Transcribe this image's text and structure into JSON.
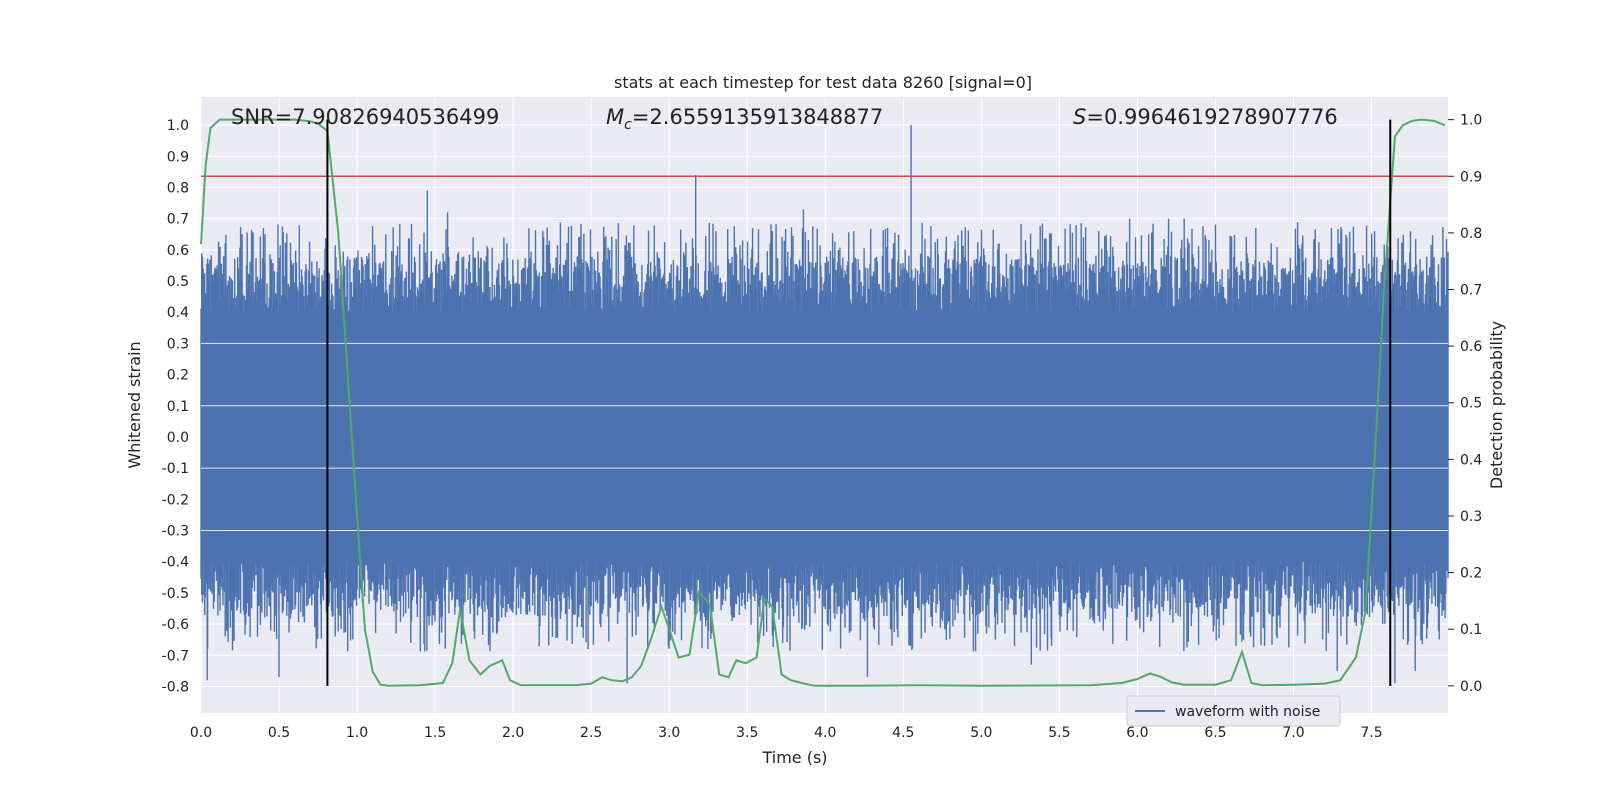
{
  "chart_data": {
    "type": "line",
    "title": "stats at each timestep for test data 8260 [signal=0]",
    "xlabel": "Time (s)",
    "ylabel": "Whitened strain",
    "y2label": "Detection probability",
    "xlim": [
      0.0,
      7.99
    ],
    "ylim": [
      -0.885,
      1.09
    ],
    "y2lim": [
      -0.048,
      1.04
    ],
    "x_ticks": [
      "0.0",
      "0.5",
      "1.0",
      "1.5",
      "2.0",
      "2.5",
      "3.0",
      "3.5",
      "4.0",
      "4.5",
      "5.0",
      "5.5",
      "6.0",
      "6.5",
      "7.0",
      "7.5"
    ],
    "y_ticks": [
      "-0.8",
      "-0.7",
      "-0.6",
      "-0.5",
      "-0.4",
      "-0.3",
      "-0.2",
      "-0.1",
      "0.0",
      "0.1",
      "0.2",
      "0.3",
      "0.4",
      "0.5",
      "0.6",
      "0.7",
      "0.8",
      "0.9",
      "1.0"
    ],
    "y2_ticks": [
      "0.0",
      "0.1",
      "0.2",
      "0.3",
      "0.4",
      "0.5",
      "0.6",
      "0.7",
      "0.8",
      "0.9",
      "1.0"
    ],
    "grid": true,
    "legend": {
      "position": "lower-right",
      "entries": [
        "waveform with noise"
      ]
    },
    "annotations": {
      "snr": "SNR=7.90826940536499",
      "mc_symbol": "M",
      "mc_sub": "c",
      "mc_value": "=2.6559135913848877",
      "s_symbol": "S",
      "s_value": "=0.9964619278907776"
    },
    "threshold_y2": 0.9,
    "vlines_x": [
      0.81,
      7.62
    ],
    "vlines_y2_range": [
      0.0,
      1.0
    ],
    "waveform": {
      "name": "waveform with noise",
      "color": "#4c72b0",
      "typical_band": [
        -0.35,
        0.35
      ],
      "peaks_positive": [
        {
          "x": 0.41,
          "y": 0.65
        },
        {
          "x": 1.45,
          "y": 0.79
        },
        {
          "x": 1.58,
          "y": 0.72
        },
        {
          "x": 3.17,
          "y": 0.84
        },
        {
          "x": 3.3,
          "y": 0.66
        },
        {
          "x": 3.47,
          "y": 0.63
        },
        {
          "x": 3.86,
          "y": 0.73
        },
        {
          "x": 4.55,
          "y": 1.0
        },
        {
          "x": 5.95,
          "y": 0.7
        },
        {
          "x": 6.1,
          "y": 0.66
        },
        {
          "x": 6.2,
          "y": 0.7
        },
        {
          "x": 6.3,
          "y": 0.7
        },
        {
          "x": 7.52,
          "y": 0.66
        },
        {
          "x": 7.75,
          "y": 0.66
        }
      ],
      "peaks_negative": [
        {
          "x": 0.04,
          "y": -0.78
        },
        {
          "x": 0.5,
          "y": -0.77
        },
        {
          "x": 1.25,
          "y": -0.63
        },
        {
          "x": 2.48,
          "y": -0.68
        },
        {
          "x": 2.73,
          "y": -0.79
        },
        {
          "x": 4.27,
          "y": -0.77
        },
        {
          "x": 5.32,
          "y": -0.73
        },
        {
          "x": 5.45,
          "y": -0.67
        },
        {
          "x": 6.68,
          "y": -0.65
        },
        {
          "x": 7.28,
          "y": -0.75
        },
        {
          "x": 7.65,
          "y": -0.79
        },
        {
          "x": 7.78,
          "y": -0.75
        }
      ]
    },
    "probability": {
      "color": "#55a868",
      "threshold_color": "#c44e52",
      "points": [
        [
          0.0,
          0.78
        ],
        [
          0.03,
          0.92
        ],
        [
          0.06,
          0.985
        ],
        [
          0.12,
          1.0
        ],
        [
          0.2,
          1.0
        ],
        [
          0.4,
          1.0
        ],
        [
          0.6,
          1.0
        ],
        [
          0.7,
          0.997
        ],
        [
          0.75,
          0.993
        ],
        [
          0.81,
          0.98
        ],
        [
          0.88,
          0.8
        ],
        [
          0.94,
          0.55
        ],
        [
          1.0,
          0.3
        ],
        [
          1.05,
          0.1
        ],
        [
          1.1,
          0.025
        ],
        [
          1.15,
          0.002
        ],
        [
          1.2,
          0.0
        ],
        [
          1.4,
          0.001
        ],
        [
          1.55,
          0.005
        ],
        [
          1.61,
          0.04
        ],
        [
          1.66,
          0.135
        ],
        [
          1.72,
          0.045
        ],
        [
          1.79,
          0.02
        ],
        [
          1.85,
          0.035
        ],
        [
          1.93,
          0.045
        ],
        [
          1.98,
          0.01
        ],
        [
          2.05,
          0.001
        ],
        [
          2.4,
          0.001
        ],
        [
          2.5,
          0.004
        ],
        [
          2.57,
          0.015
        ],
        [
          2.63,
          0.01
        ],
        [
          2.7,
          0.008
        ],
        [
          2.76,
          0.015
        ],
        [
          2.82,
          0.035
        ],
        [
          2.88,
          0.08
        ],
        [
          2.95,
          0.14
        ],
        [
          3.0,
          0.1
        ],
        [
          3.06,
          0.05
        ],
        [
          3.13,
          0.055
        ],
        [
          3.19,
          0.165
        ],
        [
          3.26,
          0.145
        ],
        [
          3.32,
          0.02
        ],
        [
          3.38,
          0.015
        ],
        [
          3.43,
          0.045
        ],
        [
          3.49,
          0.04
        ],
        [
          3.56,
          0.05
        ],
        [
          3.61,
          0.155
        ],
        [
          3.66,
          0.14
        ],
        [
          3.72,
          0.02
        ],
        [
          3.78,
          0.01
        ],
        [
          3.85,
          0.005
        ],
        [
          3.93,
          0.0
        ],
        [
          4.2,
          0.0
        ],
        [
          4.6,
          0.001
        ],
        [
          5.0,
          0.0
        ],
        [
          5.7,
          0.001
        ],
        [
          5.9,
          0.005
        ],
        [
          6.0,
          0.012
        ],
        [
          6.08,
          0.022
        ],
        [
          6.15,
          0.016
        ],
        [
          6.22,
          0.006
        ],
        [
          6.3,
          0.002
        ],
        [
          6.5,
          0.002
        ],
        [
          6.6,
          0.01
        ],
        [
          6.67,
          0.06
        ],
        [
          6.73,
          0.005
        ],
        [
          6.8,
          0.001
        ],
        [
          7.0,
          0.002
        ],
        [
          7.2,
          0.004
        ],
        [
          7.3,
          0.01
        ],
        [
          7.4,
          0.05
        ],
        [
          7.46,
          0.13
        ],
        [
          7.52,
          0.4
        ],
        [
          7.58,
          0.7
        ],
        [
          7.65,
          0.97
        ],
        [
          7.7,
          0.99
        ],
        [
          7.76,
          0.998
        ],
        [
          7.82,
          1.0
        ],
        [
          7.9,
          0.998
        ],
        [
          7.97,
          0.99
        ]
      ]
    }
  },
  "colors": {
    "axes_bg": "#eaeaf2",
    "grid": "#ffffff",
    "text": "#222222",
    "vline": "#000000"
  }
}
